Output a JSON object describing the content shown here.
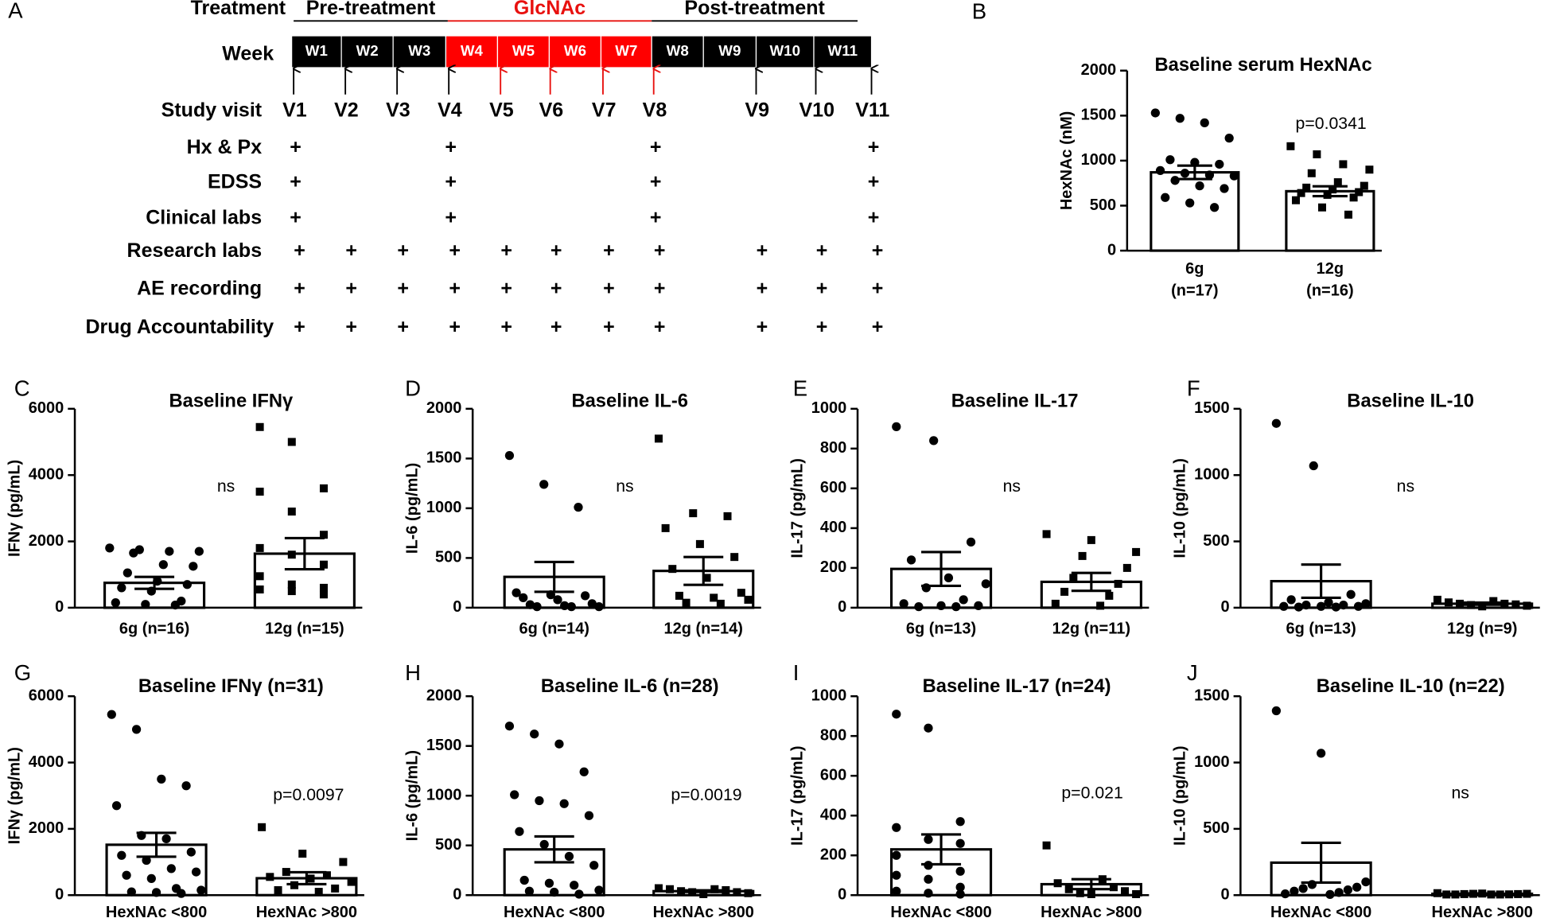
{
  "schedule": {
    "panel": "A",
    "treatment_label": "Treatment",
    "week_label": "Week",
    "phases": [
      {
        "label": "Pre-treatment",
        "color": "#000000"
      },
      {
        "label": "GlcNAc",
        "color": "#e8110f"
      },
      {
        "label": "Post-treatment",
        "color": "#000000"
      }
    ],
    "weeks": [
      {
        "label": "W1",
        "color": "#000000"
      },
      {
        "label": "W2",
        "color": "#000000"
      },
      {
        "label": "W3",
        "color": "#000000"
      },
      {
        "label": "W4",
        "color": "#ff0000"
      },
      {
        "label": "W5",
        "color": "#ff0000"
      },
      {
        "label": "W6",
        "color": "#ff0000"
      },
      {
        "label": "W7",
        "color": "#ff0000"
      },
      {
        "label": "W8",
        "color": "#000000"
      },
      {
        "label": "W9",
        "color": "#000000"
      },
      {
        "label": "W10",
        "color": "#000000"
      },
      {
        "label": "W11",
        "color": "#000000"
      }
    ],
    "visit_row_label": "Study visit",
    "visits": [
      {
        "label": "V1",
        "color": "#000000"
      },
      {
        "label": "V2",
        "color": "#000000"
      },
      {
        "label": "V3",
        "color": "#000000"
      },
      {
        "label": "V4",
        "color": "#000000"
      },
      {
        "label": "V5",
        "color": "#e8110f"
      },
      {
        "label": "V6",
        "color": "#e8110f"
      },
      {
        "label": "V7",
        "color": "#e8110f"
      },
      {
        "label": "V8",
        "color": "#e8110f"
      },
      {
        "label": "V9",
        "color": "#000000"
      },
      {
        "label": "V10",
        "color": "#000000"
      },
      {
        "label": "V11",
        "color": "#000000"
      }
    ],
    "rows": [
      {
        "label": "Hx & Px",
        "marks": [
          "+",
          null,
          null,
          "+",
          null,
          null,
          null,
          "+",
          null,
          null,
          "+"
        ]
      },
      {
        "label": "EDSS",
        "marks": [
          "+",
          null,
          null,
          "+",
          null,
          null,
          null,
          "+",
          null,
          null,
          "+"
        ]
      },
      {
        "label": "Clinical labs",
        "marks": [
          "+",
          null,
          null,
          "+",
          null,
          null,
          null,
          "+",
          null,
          null,
          "+"
        ]
      },
      {
        "label": "Research labs",
        "marks": [
          "+",
          "+",
          "+",
          "+",
          "+",
          "+",
          "+",
          "+",
          "+",
          "+",
          "+"
        ]
      },
      {
        "label": "AE recording",
        "marks": [
          "+",
          "+",
          "+",
          "+",
          "+",
          "+",
          "+",
          "+",
          "+",
          "+",
          "+"
        ]
      },
      {
        "label": "Drug Accountability",
        "marks": [
          "+",
          "+",
          "+",
          "+",
          "+",
          "+",
          "+",
          "+",
          "+",
          "+",
          "+"
        ]
      }
    ]
  },
  "chart_data": [
    {
      "type": "bar",
      "panel": "B",
      "title": "Baseline serum HexNAc",
      "ylabel": "HexNAc (nM)",
      "categories": [
        [
          "6g",
          "(n=17)"
        ],
        [
          "12g",
          "(n=16)"
        ]
      ],
      "values": [
        870,
        660
      ],
      "errors": [
        75,
        55
      ],
      "markers": [
        "circle",
        "square"
      ],
      "points": [
        [
          1530,
          1470,
          1420,
          1250,
          1010,
          980,
          960,
          890,
          860,
          840,
          830,
          780,
          720,
          690,
          590,
          530,
          480
        ],
        [
          1160,
          1070,
          960,
          900,
          860,
          760,
          720,
          700,
          680,
          650,
          640,
          620,
          590,
          560,
          480,
          400
        ]
      ],
      "annotation": "p=0.0341",
      "ylim": [
        0,
        2000
      ],
      "yticks": [
        0,
        500,
        1000,
        1500,
        2000
      ]
    },
    {
      "type": "bar",
      "panel": "C",
      "title": "Baseline IFNγ",
      "ylabel": "IFNγ (pg/mL)",
      "categories": [
        [
          "6g (n=16)"
        ],
        [
          "12g (n=15)"
        ]
      ],
      "values": [
        750,
        1630
      ],
      "errors": [
        180,
        470
      ],
      "markers": [
        "circle",
        "square"
      ],
      "points": [
        [
          1800,
          1750,
          1700,
          1700,
          1650,
          1300,
          1250,
          1050,
          800,
          700,
          600,
          500,
          200,
          150,
          100,
          80
        ],
        [
          5450,
          5000,
          3600,
          3500,
          2900,
          2200,
          1800,
          1600,
          1300,
          950,
          700,
          600,
          550,
          500,
          400
        ]
      ],
      "annotation": "ns",
      "ylim": [
        0,
        6000
      ],
      "yticks": [
        0,
        2000,
        4000,
        6000
      ]
    },
    {
      "type": "bar",
      "panel": "D",
      "title": "Baseline IL-6",
      "ylabel": "IL-6 (pg/mL)",
      "categories": [
        [
          "6g (n=14)"
        ],
        [
          "12g (n=14)"
        ]
      ],
      "values": [
        310,
        370
      ],
      "errors": [
        150,
        140
      ],
      "markers": [
        "circle",
        "square"
      ],
      "points": [
        [
          1530,
          1240,
          1010,
          150,
          130,
          120,
          100,
          80,
          40,
          30,
          20,
          10,
          10,
          10
        ],
        [
          1700,
          950,
          920,
          800,
          640,
          510,
          390,
          300,
          150,
          120,
          100,
          80,
          50,
          40
        ]
      ],
      "annotation": "ns",
      "ylim": [
        0,
        2000
      ],
      "yticks": [
        0,
        500,
        1000,
        1500,
        2000
      ]
    },
    {
      "type": "bar",
      "panel": "E",
      "title": "Baseline IL-17",
      "ylabel": "IL-17 (pg/mL)",
      "categories": [
        [
          "6g (n=13)"
        ],
        [
          "12g (n=11)"
        ]
      ],
      "values": [
        195,
        130
      ],
      "errors": [
        85,
        45
      ],
      "markers": [
        "circle",
        "square"
      ],
      "points": [
        [
          910,
          840,
          330,
          240,
          150,
          120,
          100,
          40,
          20,
          10,
          10,
          5,
          5
        ],
        [
          370,
          340,
          280,
          260,
          200,
          150,
          120,
          80,
          60,
          20,
          10
        ]
      ],
      "annotation": "ns",
      "ylim": [
        0,
        1000
      ],
      "yticks": [
        0,
        200,
        400,
        600,
        800,
        1000
      ]
    },
    {
      "type": "bar",
      "panel": "F",
      "title": "Baseline IL-10",
      "ylabel": "IL-10 (pg/mL)",
      "categories": [
        [
          "6g (n=13)"
        ],
        [
          "12g (n=9)"
        ]
      ],
      "values": [
        200,
        30
      ],
      "errors": [
        125,
        8
      ],
      "markers": [
        "circle",
        "square"
      ],
      "points": [
        [
          1390,
          1070,
          100,
          60,
          40,
          30,
          20,
          20,
          10,
          10,
          10,
          5,
          5
        ],
        [
          60,
          50,
          40,
          30,
          30,
          25,
          20,
          15,
          10
        ]
      ],
      "annotation": "ns",
      "ylim": [
        0,
        1500
      ],
      "yticks": [
        0,
        500,
        1000,
        1500
      ]
    },
    {
      "type": "bar",
      "panel": "G",
      "title": "Baseline IFNγ (n=31)",
      "ylabel": "IFNγ (pg/mL)",
      "categories": [
        [
          "HexNAc <800"
        ],
        [
          "HexNAc >800"
        ]
      ],
      "values": [
        1520,
        510
      ],
      "errors": [
        360,
        180
      ],
      "markers": [
        "circle",
        "square"
      ],
      "points": [
        [
          5450,
          5000,
          3500,
          3300,
          2700,
          1800,
          1700,
          1300,
          1200,
          1050,
          800,
          700,
          600,
          500,
          200,
          150,
          100,
          80,
          50
        ],
        [
          2050,
          1250,
          1000,
          700,
          600,
          550,
          500,
          400,
          300,
          200,
          150,
          100
        ]
      ],
      "annotation": "p=0.0097",
      "ylim": [
        0,
        6000
      ],
      "yticks": [
        0,
        2000,
        4000,
        6000
      ]
    },
    {
      "type": "bar",
      "panel": "H",
      "title": "Baseline IL-6 (n=28)",
      "ylabel": "IL-6 (pg/mL)",
      "categories": [
        [
          "HexNAc <800"
        ],
        [
          "HexNAc >800"
        ]
      ],
      "values": [
        460,
        40
      ],
      "errors": [
        130,
        8
      ],
      "markers": [
        "circle",
        "square"
      ],
      "points": [
        [
          1700,
          1620,
          1520,
          1240,
          1010,
          950,
          920,
          800,
          640,
          510,
          390,
          300,
          150,
          120,
          100,
          50,
          40,
          30,
          10
        ],
        [
          70,
          60,
          60,
          50,
          40,
          30,
          30,
          20,
          10
        ]
      ],
      "annotation": "p=0.0019",
      "ylim": [
        0,
        2000
      ],
      "yticks": [
        0,
        500,
        1000,
        1500,
        2000
      ]
    },
    {
      "type": "bar",
      "panel": "I",
      "title": "Baseline IL-17 (n=24)",
      "ylabel": "IL-17 (pg/mL)",
      "categories": [
        [
          "HexNAc <800"
        ],
        [
          "HexNAc >800"
        ]
      ],
      "values": [
        230,
        55
      ],
      "errors": [
        75,
        25
      ],
      "markers": [
        "circle",
        "square"
      ],
      "points": [
        [
          910,
          840,
          370,
          340,
          280,
          260,
          200,
          150,
          120,
          100,
          80,
          40,
          20,
          10,
          5
        ],
        [
          250,
          80,
          60,
          40,
          30,
          20,
          10,
          5,
          5
        ]
      ],
      "annotation": "p=0.021",
      "ylim": [
        0,
        1000
      ],
      "yticks": [
        0,
        200,
        400,
        600,
        800,
        1000
      ]
    },
    {
      "type": "bar",
      "panel": "J",
      "title": "Baseline IL-10 (n=22)",
      "ylabel": "IL-10 (pg/mL)",
      "categories": [
        [
          "HexNAc <800"
        ],
        [
          "HexNAc >800"
        ]
      ],
      "values": [
        245,
        10
      ],
      "errors": [
        150,
        3
      ],
      "markers": [
        "circle",
        "square"
      ],
      "points": [
        [
          1390,
          1070,
          100,
          80,
          60,
          50,
          40,
          30,
          20,
          10,
          5
        ],
        [
          15,
          12,
          10,
          10,
          8,
          8,
          6,
          5,
          5,
          5,
          5
        ]
      ],
      "annotation": "ns",
      "ylim": [
        0,
        1500
      ],
      "yticks": [
        0,
        500,
        1000,
        1500
      ]
    }
  ]
}
